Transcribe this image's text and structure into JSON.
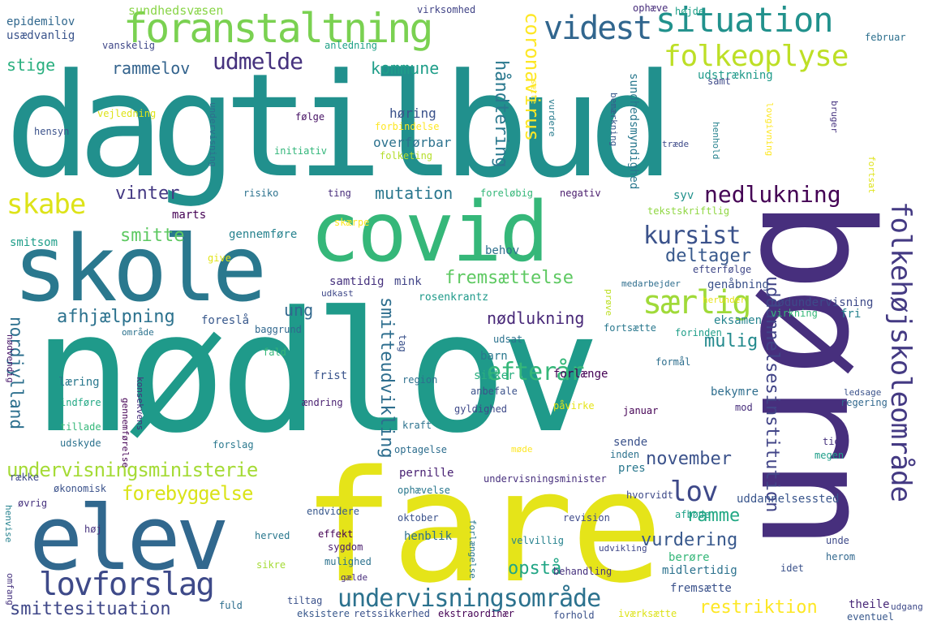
{
  "words": [
    {
      "text": "dagtilbud",
      "color": "#21908d"
    },
    {
      "text": "nødlov",
      "color": "#1f9a8a"
    },
    {
      "text": "børn",
      "color": "#472f7d"
    },
    {
      "text": "fare",
      "color": "#e5e419"
    },
    {
      "text": "covid",
      "color": "#35b779"
    },
    {
      "text": "skole",
      "color": "#2a788e"
    },
    {
      "text": "elev",
      "color": "#31688e"
    },
    {
      "text": "foranstaltning",
      "color": "#7ad151"
    },
    {
      "text": "situation",
      "color": "#21918c"
    },
    {
      "text": "videst",
      "color": "#31668e"
    },
    {
      "text": "folkeoplyse",
      "color": "#bddf26"
    },
    {
      "text": "lovforslag",
      "color": "#3e4a89"
    },
    {
      "text": "folkehøjskoleområde",
      "color": "#443a83"
    },
    {
      "text": "undervisningsområde",
      "color": "#2c728e"
    },
    {
      "text": "nedlukning",
      "color": "#440154"
    },
    {
      "text": "særlig",
      "color": "#a0da39"
    },
    {
      "text": "skabe",
      "color": "#dde318"
    },
    {
      "text": "kursist",
      "color": "#3b528b"
    },
    {
      "text": "lov",
      "color": "#3e4989"
    },
    {
      "text": "udmelde",
      "color": "#46327e"
    },
    {
      "text": "efterår",
      "color": "#35b779"
    },
    {
      "text": "coronavirus",
      "color": "#fde725"
    },
    {
      "text": "undervisningsministerie",
      "color": "#a5db36"
    },
    {
      "text": "uddannelsesinstitution",
      "color": "#414487"
    },
    {
      "text": "smitteudvikling",
      "color": "#2e6e8e"
    },
    {
      "text": "smittesituation",
      "color": "#3f4788"
    },
    {
      "text": "forebyggelse",
      "color": "#dae319"
    },
    {
      "text": "fremsættelse",
      "color": "#5ec962"
    },
    {
      "text": "håndtering",
      "color": "#2a788e"
    },
    {
      "text": "afhjælpning",
      "color": "#2c728e"
    },
    {
      "text": "mutation",
      "color": "#2a778e"
    },
    {
      "text": "nødlukning",
      "color": "#482878"
    },
    {
      "text": "deltager",
      "color": "#38598c"
    },
    {
      "text": "nordjylland",
      "color": "#2d708e"
    },
    {
      "text": "opstå",
      "color": "#21a685"
    },
    {
      "text": "restriktion",
      "color": "#fde725"
    },
    {
      "text": "vurdering",
      "color": "#38588c"
    },
    {
      "text": "november",
      "color": "#3b528b"
    },
    {
      "text": "mulig",
      "color": "#238a8d"
    },
    {
      "text": "ramme",
      "color": "#22a884"
    },
    {
      "text": "vinter",
      "color": "#443983"
    },
    {
      "text": "smitte",
      "color": "#5ec962"
    },
    {
      "text": "rammelov",
      "color": "#33638d"
    },
    {
      "text": "kommune",
      "color": "#1f9e89"
    },
    {
      "text": "stige",
      "color": "#29af7f"
    },
    {
      "text": "ung",
      "color": "#31688e"
    },
    {
      "text": "epidemilov",
      "color": "#31688e"
    },
    {
      "text": "usædvanlig",
      "color": "#3a548c"
    },
    {
      "text": "sundhedsvæsen",
      "color": "#89d548"
    },
    {
      "text": "virksomhed",
      "color": "#414487"
    },
    {
      "text": "ophæve",
      "color": "#472d7b"
    },
    {
      "text": "højde",
      "color": "#1fa088"
    },
    {
      "text": "februar",
      "color": "#2d708e"
    },
    {
      "text": "vanskelig",
      "color": "#3f4788"
    },
    {
      "text": "anledning",
      "color": "#1fa187"
    },
    {
      "text": "sundhedsmyndighed",
      "color": "#2a788e"
    },
    {
      "text": "udstrækning",
      "color": "#1f9a8a"
    },
    {
      "text": "samt",
      "color": "#3e4a89"
    },
    {
      "text": "sætte",
      "color": "#fde725"
    },
    {
      "text": "vurdere",
      "color": "#287c8e"
    },
    {
      "text": "bemærkning",
      "color": "#38598c"
    },
    {
      "text": "vejledning",
      "color": "#dde318"
    },
    {
      "text": "følge",
      "color": "#471365"
    },
    {
      "text": "høring",
      "color": "#3b528b"
    },
    {
      "text": "forbindelse",
      "color": "#fde725"
    },
    {
      "text": "overførbar",
      "color": "#2c728e"
    },
    {
      "text": "initiativ",
      "color": "#32b67a"
    },
    {
      "text": "folketing",
      "color": "#b5de2b"
    },
    {
      "text": "hensyn",
      "color": "#3b528b"
    },
    {
      "text": "undervisning",
      "color": "#2e6e8e"
    },
    {
      "text": "lovgivning",
      "color": "#fde725"
    },
    {
      "text": "henhold",
      "color": "#26828e"
    },
    {
      "text": "træde",
      "color": "#3e4a89"
    },
    {
      "text": "bruger",
      "color": "#46337f"
    },
    {
      "text": "fortsat",
      "color": "#dfe318"
    },
    {
      "text": "risiko",
      "color": "#2c728e"
    },
    {
      "text": "ting",
      "color": "#472c7a"
    },
    {
      "text": "foreløbig",
      "color": "#35b779"
    },
    {
      "text": "negativ",
      "color": "#481a6c"
    },
    {
      "text": "syv",
      "color": "#21918c"
    },
    {
      "text": "tekstskriftlig",
      "color": "#90d743"
    },
    {
      "text": "marts",
      "color": "#440154"
    },
    {
      "text": "gennemføre",
      "color": "#26828e"
    },
    {
      "text": "skærpe",
      "color": "#fde725"
    },
    {
      "text": "smitsom",
      "color": "#1f9e89"
    },
    {
      "text": "give",
      "color": "#e2e418"
    },
    {
      "text": "behov",
      "color": "#2d708e"
    },
    {
      "text": "efterfølge",
      "color": "#3f4788"
    },
    {
      "text": "genåbning",
      "color": "#3b528b"
    },
    {
      "text": "samtidig",
      "color": "#46327e"
    },
    {
      "text": "mink",
      "color": "#414487"
    },
    {
      "text": "medarbejder",
      "color": "#2e6e8e"
    },
    {
      "text": "herunder",
      "color": "#e7e419"
    },
    {
      "text": "udkast",
      "color": "#3f4889"
    },
    {
      "text": "rosenkrantz",
      "color": "#1f9a8a"
    },
    {
      "text": "nødundervisning",
      "color": "#3e4a89"
    },
    {
      "text": "virkning",
      "color": "#35b779"
    },
    {
      "text": "fri",
      "color": "#26828e"
    },
    {
      "text": "prøve",
      "color": "#bddf26"
    },
    {
      "text": "foreslå",
      "color": "#38588c"
    },
    {
      "text": "baggrund",
      "color": "#31688e"
    },
    {
      "text": "område",
      "color": "#2c728e"
    },
    {
      "text": "fortsætte",
      "color": "#2a788e"
    },
    {
      "text": "forinden",
      "color": "#1f9e89"
    },
    {
      "text": "eksamen",
      "color": "#25848e"
    },
    {
      "text": "nødvendig",
      "color": "#48186a"
    },
    {
      "text": "tag",
      "color": "#3b528b"
    },
    {
      "text": "udsat",
      "color": "#2c728e"
    },
    {
      "text": "formål",
      "color": "#2e6f8e"
    },
    {
      "text": "barn",
      "color": "#2a788e"
    },
    {
      "text": "fald",
      "color": "#35b779"
    },
    {
      "text": "læring",
      "color": "#2a788e"
    },
    {
      "text": "konsekvens",
      "color": "#472f7d"
    },
    {
      "text": "frist",
      "color": "#3a548c"
    },
    {
      "text": "region",
      "color": "#2d708e"
    },
    {
      "text": "sikker",
      "color": "#29af7f"
    },
    {
      "text": "forlænge",
      "color": "#440154"
    },
    {
      "text": "anbefale",
      "color": "#3b528b"
    },
    {
      "text": "bekymre",
      "color": "#2e6e8e"
    },
    {
      "text": "ledsage",
      "color": "#3b528b"
    },
    {
      "text": "regering",
      "color": "#31688e"
    },
    {
      "text": "indføre",
      "color": "#22a884"
    },
    {
      "text": "gennemførelse",
      "color": "#440154"
    },
    {
      "text": "ændring",
      "color": "#481f70"
    },
    {
      "text": "påvirke",
      "color": "#e5e419"
    },
    {
      "text": "gyldighed",
      "color": "#3e4989"
    },
    {
      "text": "januar",
      "color": "#440154"
    },
    {
      "text": "mod",
      "color": "#472d7b"
    },
    {
      "text": "tillade",
      "color": "#35b779"
    },
    {
      "text": "kraft",
      "color": "#2c728e"
    },
    {
      "text": "udskyde",
      "color": "#2c728e"
    },
    {
      "text": "forslag",
      "color": "#2a788e"
    },
    {
      "text": "optagelse",
      "color": "#2e6e8e"
    },
    {
      "text": "tid",
      "color": "#46327e"
    },
    {
      "text": "møde",
      "color": "#fde725"
    },
    {
      "text": "inden",
      "color": "#2c728e"
    },
    {
      "text": "megen",
      "color": "#1f9e89"
    },
    {
      "text": "sende",
      "color": "#3b528b"
    },
    {
      "text": "pernille",
      "color": "#482173"
    },
    {
      "text": "pres",
      "color": "#2a788e"
    },
    {
      "text": "række",
      "color": "#3e4a89"
    },
    {
      "text": "økonomisk",
      "color": "#3b528b"
    },
    {
      "text": "ophævelse",
      "color": "#2a788e"
    },
    {
      "text": "undervisningsminister",
      "color": "#472f7d"
    },
    {
      "text": "hvorvidt",
      "color": "#3e4a89"
    },
    {
      "text": "uddannelsessted",
      "color": "#39558c"
    },
    {
      "text": "øvrig",
      "color": "#46327e"
    },
    {
      "text": "henvise",
      "color": "#26828e"
    },
    {
      "text": "endvidere",
      "color": "#38588c"
    },
    {
      "text": "oktober",
      "color": "#3b528b"
    },
    {
      "text": "revision",
      "color": "#3e4a89"
    },
    {
      "text": "afbøde",
      "color": "#1fa188"
    },
    {
      "text": "høj",
      "color": "#46337e"
    },
    {
      "text": "effekt",
      "color": "#440154"
    },
    {
      "text": "forlængelse",
      "color": "#2a788e"
    },
    {
      "text": "herved",
      "color": "#2a788e"
    },
    {
      "text": "sygdom",
      "color": "#481a6c"
    },
    {
      "text": "henblik",
      "color": "#2d708e"
    },
    {
      "text": "velvillig",
      "color": "#26828e"
    },
    {
      "text": "unde",
      "color": "#3e4a89"
    },
    {
      "text": "mulighed",
      "color": "#2c728e"
    },
    {
      "text": "udvikling",
      "color": "#3f4788"
    },
    {
      "text": "berøre",
      "color": "#35b779"
    },
    {
      "text": "midlertidig",
      "color": "#2c728e"
    },
    {
      "text": "herom",
      "color": "#31688e"
    },
    {
      "text": "idet",
      "color": "#3b528b"
    },
    {
      "text": "sikre",
      "color": "#a5db36"
    },
    {
      "text": "gælde",
      "color": "#472d7b"
    },
    {
      "text": "behandling",
      "color": "#46327e"
    },
    {
      "text": "fremsætte",
      "color": "#3b528b"
    },
    {
      "text": "omfang",
      "color": "#46337f"
    },
    {
      "text": "fuld",
      "color": "#2e6e8e"
    },
    {
      "text": "tiltag",
      "color": "#3b528b"
    },
    {
      "text": "eksistere",
      "color": "#38588c"
    },
    {
      "text": "retssikkerhed",
      "color": "#3b528b"
    },
    {
      "text": "ekstraordinær",
      "color": "#440154"
    },
    {
      "text": "forhold",
      "color": "#3b528b"
    },
    {
      "text": "iværksætte",
      "color": "#dde318"
    },
    {
      "text": "theile",
      "color": "#482878"
    },
    {
      "text": "udgang",
      "color": "#3e4a89"
    },
    {
      "text": "eventuel",
      "color": "#38588c"
    }
  ]
}
